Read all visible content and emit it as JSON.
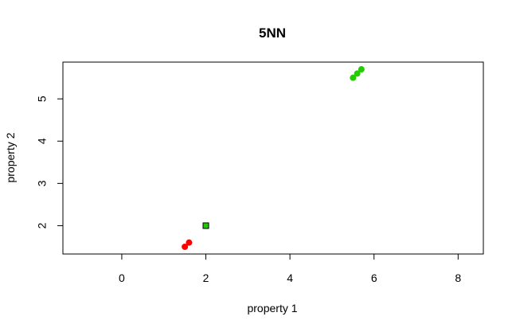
{
  "chart_data": {
    "type": "scatter",
    "title": "5NN",
    "xlabel": "property 1",
    "ylabel": "property 2",
    "xlim": [
      -1.4,
      8.6
    ],
    "ylim": [
      1.33,
      5.87
    ],
    "x_ticks": [
      0,
      2,
      4,
      6,
      8
    ],
    "y_ticks": [
      2,
      3,
      4,
      5
    ],
    "grid": false,
    "series": [
      {
        "marker": "circle",
        "color": "#ff0000",
        "points": [
          {
            "x": 1.5,
            "y": 1.5
          },
          {
            "x": 1.6,
            "y": 1.6
          }
        ]
      },
      {
        "marker": "circle",
        "color": "#22cc00",
        "points": [
          {
            "x": 5.5,
            "y": 5.5
          },
          {
            "x": 5.6,
            "y": 5.6
          },
          {
            "x": 5.7,
            "y": 5.7
          }
        ]
      },
      {
        "marker": "square",
        "color": "#22cc00",
        "stroke": "#000000",
        "points": [
          {
            "x": 2.0,
            "y": 2.0
          }
        ]
      }
    ]
  }
}
